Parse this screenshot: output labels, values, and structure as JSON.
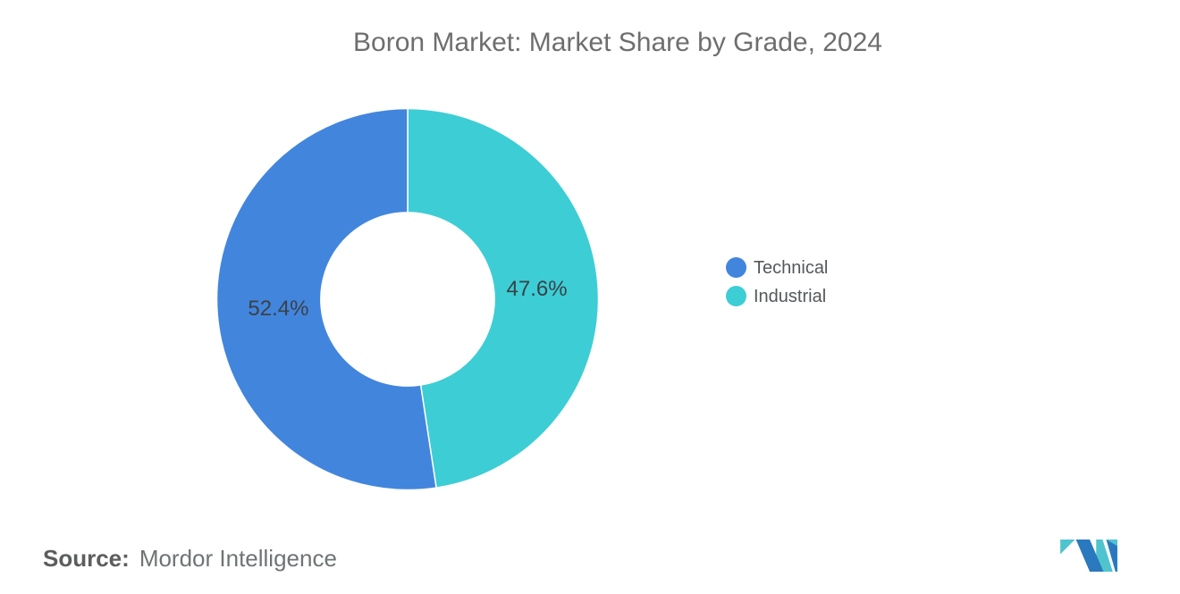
{
  "chart_data": {
    "type": "pie",
    "subtype": "donut",
    "title": "Boron Market: Market Share by Grade, 2024",
    "categories": [
      "Technical",
      "Industrial"
    ],
    "values": [
      52.4,
      47.6
    ],
    "unit": "%",
    "slices": [
      {
        "name": "Technical",
        "value": 52.4,
        "label": "52.4%",
        "color": "#4285DD"
      },
      {
        "name": "Industrial",
        "value": 47.6,
        "label": "47.6%",
        "color": "#3DCDD5"
      }
    ],
    "legend_position": "right",
    "legend_marker_shape": "circle",
    "label_color": "#3a4147",
    "start_angle_deg": 0,
    "direction": "clockwise",
    "inner_radius_ratio": 0.455,
    "background": "#ffffff",
    "title_color": "#6e6e6e"
  },
  "source": {
    "prefix": "Source:",
    "text": "Mordor Intelligence"
  },
  "branding": {
    "logo_name": "mordor-intelligence-logo",
    "logo_blue": "#2A79BF",
    "logo_teal": "#4FC4CE"
  }
}
